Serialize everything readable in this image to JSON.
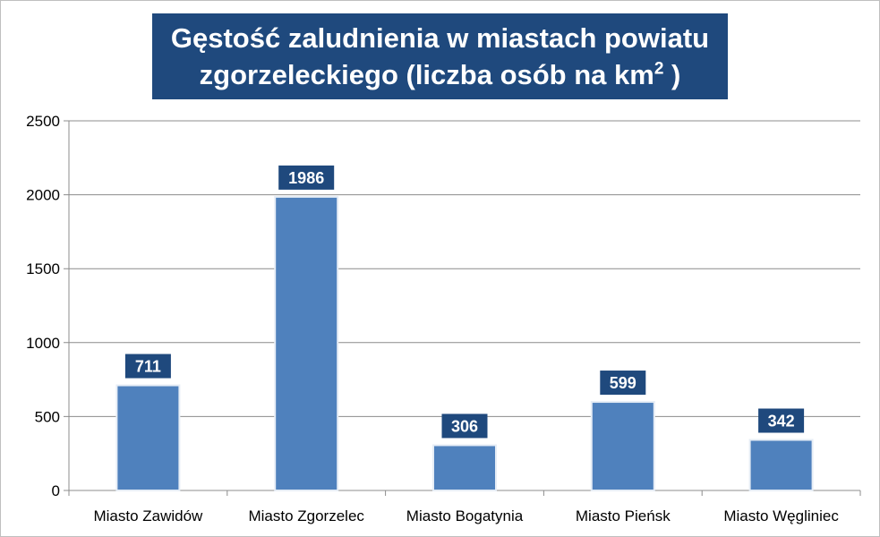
{
  "chart_data": {
    "type": "bar",
    "title": {
      "line1": "Gęstość zaludnienia w miastach powiatu",
      "line2_prefix": "zgorzeleckiego (liczba osób na km",
      "line2_sup": "2",
      "line2_suffix": " )"
    },
    "categories": [
      "Miasto Zawidów",
      "Miasto Zgorzelec",
      "Miasto Bogatynia",
      "Miasto Pieńsk",
      "Miasto Węgliniec"
    ],
    "values": [
      711,
      1986,
      306,
      599,
      342
    ],
    "data_labels": [
      "711",
      "1986",
      "306",
      "599",
      "342"
    ],
    "ylim": [
      0,
      2500
    ],
    "yticks": [
      "0",
      "500",
      "1000",
      "1500",
      "2000",
      "2500"
    ],
    "xlabel": "",
    "ylabel": "",
    "grid": true,
    "legend": "none",
    "colors": {
      "bar": "#4f81bd",
      "bar_edge": "#e6edf6",
      "label_bg": "#1f497d",
      "label_text": "#ffffff",
      "title_bg": "#1f497d",
      "title_text": "#ffffff",
      "grid": "#8c8c8c",
      "axis": "#8c8c8c"
    }
  }
}
